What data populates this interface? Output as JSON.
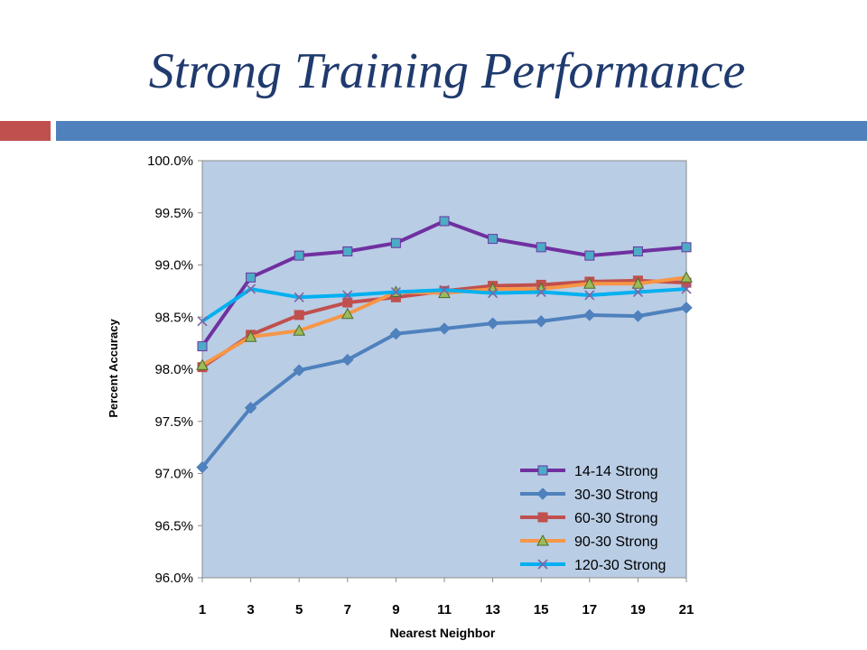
{
  "slide": {
    "title": "Strong Training Performance",
    "accent_colors": {
      "red": "#c0504d",
      "blue": "#4f81bd"
    }
  },
  "chart_data": {
    "type": "line",
    "title": "",
    "xlabel": "Nearest Neighbor",
    "ylabel": "Percent Accuracy",
    "x": [
      1,
      3,
      5,
      7,
      9,
      11,
      13,
      15,
      17,
      19,
      21
    ],
    "y_ticks": [
      "96.0%",
      "96.5%",
      "97.0%",
      "97.5%",
      "98.0%",
      "98.5%",
      "99.0%",
      "99.5%",
      "100.0%"
    ],
    "ylim": [
      96.0,
      100.0
    ],
    "grid": false,
    "plot_background": "#b9cde5",
    "legend_position": "bottom-right",
    "series": [
      {
        "name": "14-14 Strong",
        "color": "#7030a0",
        "marker": "square",
        "marker_color": "#4bacc6",
        "values": [
          98.22,
          98.88,
          99.09,
          99.13,
          99.21,
          99.42,
          99.25,
          99.17,
          99.09,
          99.13,
          99.17
        ]
      },
      {
        "name": "30-30 Strong",
        "color": "#4f81bd",
        "marker": "diamond",
        "marker_color": "#4f81bd",
        "values": [
          97.06,
          97.63,
          97.99,
          98.09,
          98.34,
          98.39,
          98.44,
          98.46,
          98.52,
          98.51,
          98.59
        ]
      },
      {
        "name": "60-30 Strong",
        "color": "#c0504d",
        "marker": "square",
        "marker_color": "#c0504d",
        "values": [
          98.02,
          98.33,
          98.52,
          98.64,
          98.69,
          98.75,
          98.8,
          98.81,
          98.84,
          98.85,
          98.83
        ]
      },
      {
        "name": "90-30 Strong",
        "color": "#f79646",
        "marker": "triangle",
        "marker_color": "#9bbb59",
        "values": [
          98.04,
          98.31,
          98.37,
          98.53,
          98.74,
          98.73,
          98.77,
          98.77,
          98.82,
          98.82,
          98.88
        ]
      },
      {
        "name": "120-30 Strong",
        "color": "#00b0f0",
        "marker": "x",
        "marker_color": "#8064a2",
        "values": [
          98.46,
          98.77,
          98.69,
          98.71,
          98.74,
          98.76,
          98.73,
          98.74,
          98.71,
          98.74,
          98.77
        ]
      }
    ]
  }
}
